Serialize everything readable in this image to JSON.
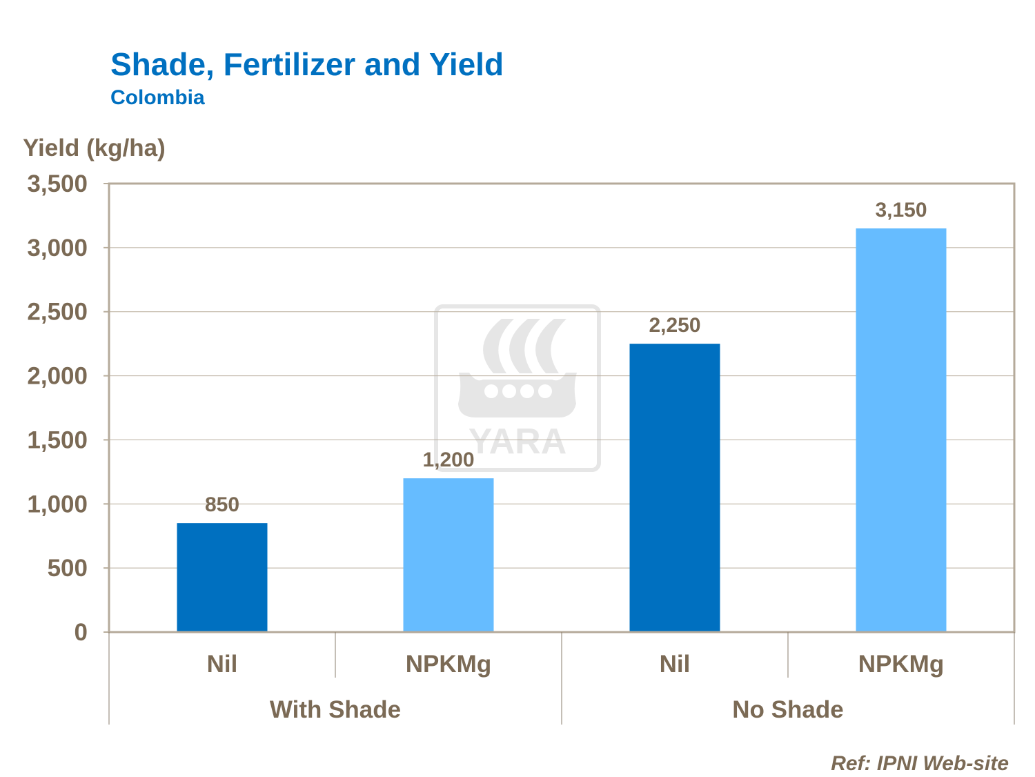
{
  "chart_data": {
    "type": "bar",
    "title": "Shade, Fertilizer and Yield",
    "subtitle": "Colombia",
    "ylabel": "Yield (kg/ha)",
    "xlabel": "",
    "ylim": [
      0,
      3500
    ],
    "yticks": [
      0,
      500,
      1000,
      1500,
      2000,
      2500,
      3000,
      3500
    ],
    "ytick_labels": [
      "0",
      "500",
      "1,000",
      "1,500",
      "2,000",
      "2,500",
      "3,000",
      "3,500"
    ],
    "grid": true,
    "categories": [
      "Nil",
      "NPKMg",
      "Nil",
      "NPKMg"
    ],
    "groups": [
      {
        "label": "With Shade",
        "span": 2
      },
      {
        "label": "No Shade",
        "span": 2
      }
    ],
    "values": [
      850,
      1200,
      2250,
      3150
    ],
    "value_labels": [
      "850",
      "1,200",
      "2,250",
      "3,150"
    ],
    "colors": [
      "#0070C0",
      "#66BCFF",
      "#0070C0",
      "#66BCFF"
    ],
    "source": "Ref: IPNI Web-site",
    "watermark": "YARA"
  }
}
